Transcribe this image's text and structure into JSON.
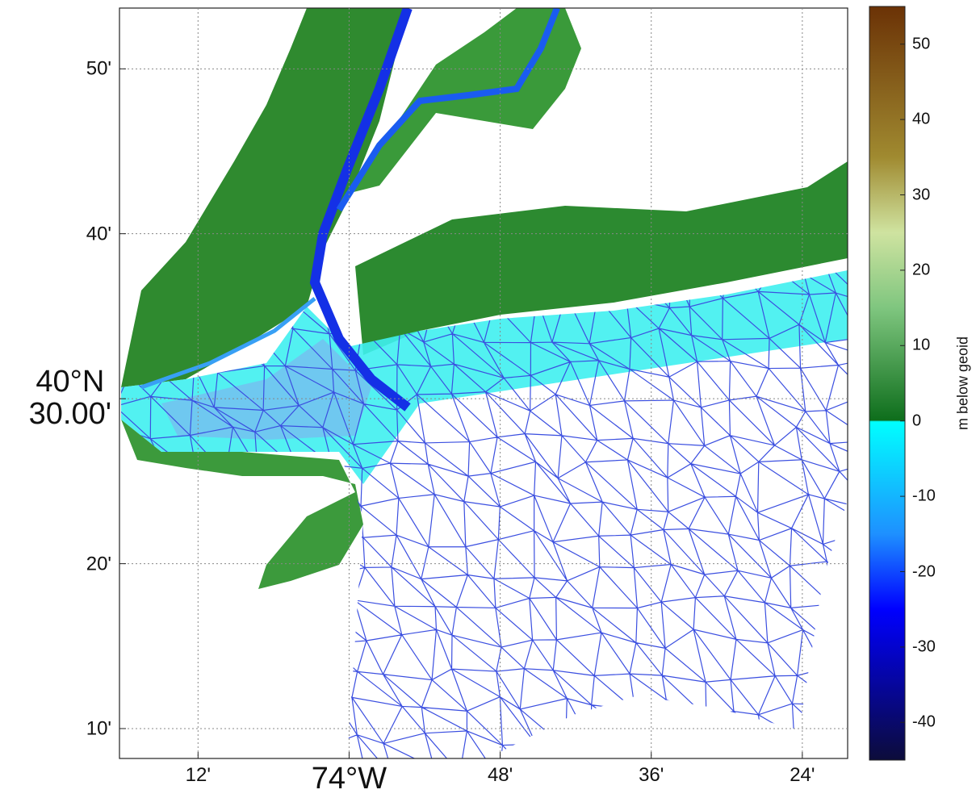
{
  "map": {
    "xticks": [
      {
        "value": -74.2,
        "label": "12'"
      },
      {
        "value": -74.0,
        "label": "74°W"
      },
      {
        "value": -73.8,
        "label": "48'"
      },
      {
        "value": -73.6,
        "label": "36'"
      },
      {
        "value": -73.4,
        "label": "24'"
      }
    ],
    "xlim": [
      -74.304,
      -73.34
    ],
    "yticks": [
      {
        "value": 40.8333,
        "label": "50'"
      },
      {
        "value": 40.6667,
        "label": "40'"
      },
      {
        "value": 40.5,
        "label": "40°N\n30.00'"
      },
      {
        "value": 40.3333,
        "label": "20'"
      },
      {
        "value": 40.1667,
        "label": "10'"
      }
    ],
    "ylim": [
      40.1365,
      40.8947
    ],
    "grid": true,
    "colorbar": {
      "label": "m below geoid",
      "ticks": [
        50,
        40,
        30,
        20,
        10,
        0,
        -10,
        -20,
        -30,
        -40
      ],
      "lim": [
        -45,
        55
      ]
    }
  }
}
